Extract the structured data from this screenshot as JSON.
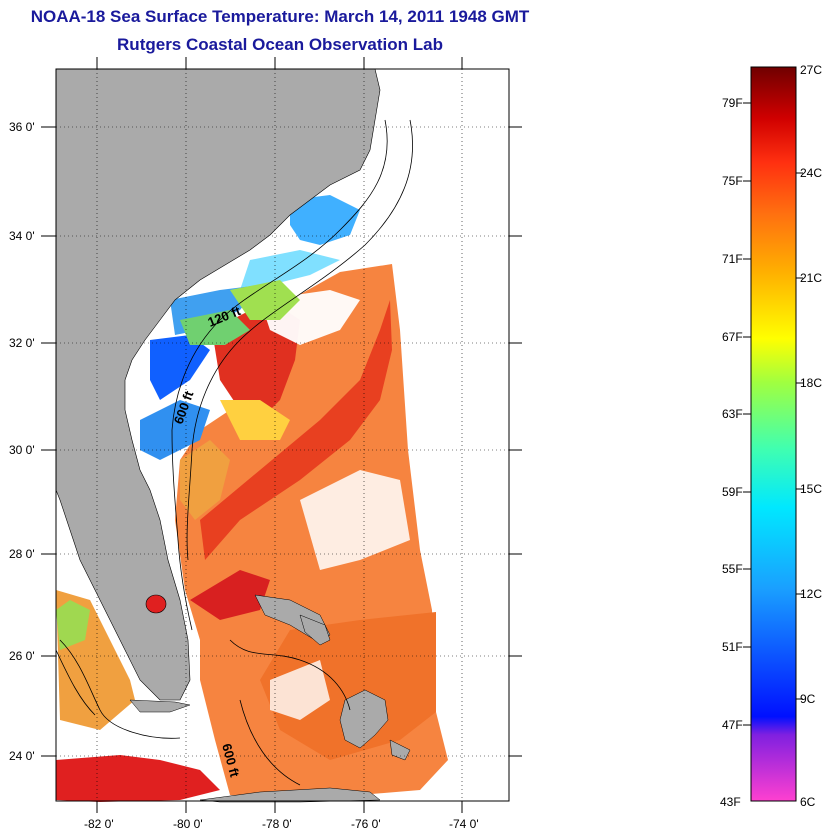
{
  "title": {
    "line1": "NOAA-18 Sea Surface Temperature:  March 14, 2011 1948 GMT",
    "line2": "Rutgers Coastal Ocean Observation Lab"
  },
  "map": {
    "lat_ticks": [
      "36 0'",
      "34 0'",
      "32 0'",
      "30 0'",
      "28 0'",
      "26 0'",
      "24 0'"
    ],
    "lon_ticks": [
      "-82 0'",
      "-80 0'",
      "-78 0'",
      "-76 0'",
      "-74 0'"
    ],
    "contour_labels": [
      "120 ft",
      "600 ft",
      "600 ft"
    ]
  },
  "colorbar": {
    "fahrenheit_labels": [
      "79F",
      "75F",
      "71F",
      "67F",
      "63F",
      "59F",
      "55F",
      "51F",
      "47F",
      "43F"
    ],
    "celsius_labels": [
      "27C",
      "24C",
      "21C",
      "18C",
      "15C",
      "12C",
      "9C",
      "6C"
    ],
    "colors": {
      "top": "#7a0000",
      "red": "#e01010",
      "orange": "#ff8000",
      "yellow": "#ffff00",
      "green": "#7fff4a",
      "cyan": "#00e0ff",
      "blue": "#0020ff",
      "purple": "#8020e0",
      "magenta": "#ff40c0"
    }
  },
  "land_color": "#aaaaaa"
}
